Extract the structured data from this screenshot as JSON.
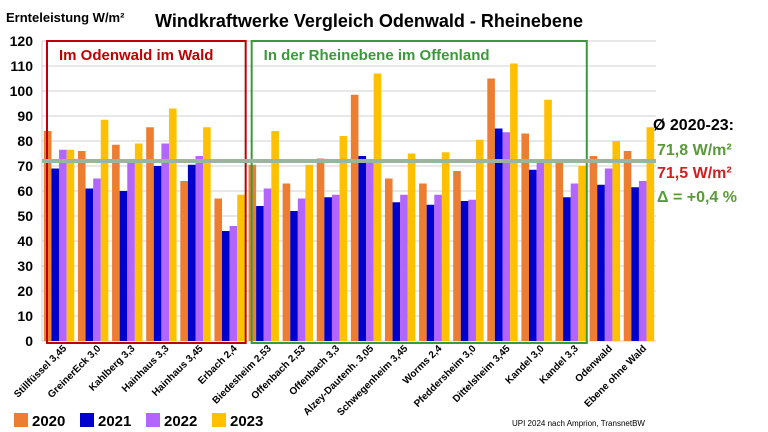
{
  "chart_data": {
    "type": "bar",
    "title": "Windkraftwerke Vergleich Odenwald - Rheinebene",
    "ylabel": "Ernteleistung W/m²",
    "xlabel": "",
    "ylim": [
      0,
      120
    ],
    "yticks": [
      0,
      10,
      20,
      30,
      40,
      50,
      60,
      70,
      80,
      90,
      100,
      110,
      120
    ],
    "grid": true,
    "categories": [
      "Stillfüssel 3,45",
      "GreinerEck 3,0",
      "Kahlberg 3,3",
      "Hainhaus 3,3",
      "Hainhaus 3,45",
      "Erbach 2,4",
      "Biedesheim 2,53",
      "Offenbach 2,53",
      "Offenbach 3,3",
      "Alzey-Dautenh. 3,05",
      "Schwegenheim 3,45",
      "Worms 2,4",
      "Pfeddersheim 3,0",
      "Dittelsheim 3,45",
      "Kandel 3,0",
      "Kandel 3,3",
      "Odenwald",
      "Ebene ohne Wald"
    ],
    "series": [
      {
        "name": "2020",
        "color": "#ED7D31",
        "values": [
          84,
          76,
          78.5,
          85.5,
          64,
          57,
          70.5,
          63,
          73,
          98.5,
          65,
          63,
          68,
          105,
          83,
          72,
          74,
          76
        ]
      },
      {
        "name": "2021",
        "color": "#0000CC",
        "values": [
          69,
          61,
          60,
          70,
          70.5,
          44,
          54,
          52,
          57.5,
          74,
          55.5,
          54.5,
          56,
          85,
          68.5,
          57.5,
          62.5,
          61.5
        ]
      },
      {
        "name": "2022",
        "color": "#B266FF",
        "values": [
          76.5,
          65,
          72.5,
          79,
          74,
          46,
          61,
          57,
          58.5,
          72.5,
          58.5,
          58.5,
          56.5,
          83.5,
          72.5,
          63,
          69,
          64
        ]
      },
      {
        "name": "2023",
        "color": "#FFC000",
        "values": [
          76.5,
          88.5,
          79,
          93,
          85.5,
          58.5,
          84,
          70.5,
          82,
          107,
          75,
          75.5,
          80.5,
          111,
          96.5,
          70,
          80,
          85.5
        ]
      }
    ],
    "reference_line": {
      "value": 72,
      "color": "#9EB2A0"
    },
    "regions": [
      {
        "label": "Im Odenwald im Wald",
        "color": "#C00000",
        "from_index": 0,
        "to_index": 5
      },
      {
        "label": "In der Rheinebene im Offenland",
        "color": "#3A9A3A",
        "from_index": 6,
        "to_index": 15
      }
    ],
    "annotations": {
      "avg_heading": "Ø 2020-23:",
      "avg_ebene": "71,8 W/m²",
      "avg_ebene_color": "#5A9A3A",
      "avg_wald": "71,5 W/m²",
      "avg_wald_color": "#D02020",
      "delta": "Δ = +0,4 %",
      "delta_color": "#5A9A3A"
    },
    "legend_position": "bottom-left",
    "source": "UPI 2024 nach Amprion, TransnetBW"
  }
}
